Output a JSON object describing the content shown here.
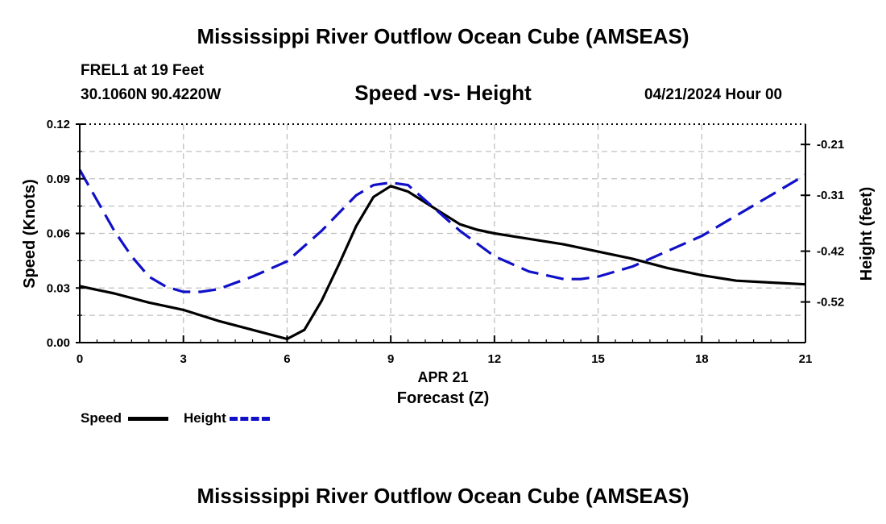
{
  "header": {
    "main_title": "Mississippi River Outflow Ocean Cube (AMSEAS)",
    "station_line": "FREL1 at 19 Feet",
    "coords_line": "30.1060N  90.4220W",
    "chart_title": "Speed -vs- Height",
    "datetime": "04/21/2024 Hour 00"
  },
  "footer": {
    "main_title": "Mississippi River Outflow Ocean Cube (AMSEAS)"
  },
  "colors": {
    "speed": "#000000",
    "height": "#1010c8",
    "grid": "#c0c0c0"
  },
  "chart_data": {
    "type": "line",
    "title": "Speed -vs- Height",
    "xlabel": "Forecast (Z)",
    "xdate_label": "APR 21",
    "ylabel_left": "Speed (Knots)",
    "ylabel_right": "Height (feet)",
    "xlim": [
      0,
      21
    ],
    "ylim_left": [
      0,
      0.12
    ],
    "ylim_right": [
      -0.6,
      -0.17
    ],
    "x_ticks": [
      0,
      3,
      6,
      9,
      12,
      15,
      18,
      21
    ],
    "x_tick_labels": [
      "0",
      "3",
      "6",
      "9",
      "12",
      "15",
      "18",
      "21"
    ],
    "y_left_ticks": [
      0,
      0.03,
      0.06,
      0.09,
      0.12
    ],
    "y_left_tick_labels": [
      "0.00",
      "0.03",
      "0.06",
      "0.09",
      "0.12"
    ],
    "y_right_ticks": [
      -0.21,
      -0.31,
      -0.42,
      -0.52
    ],
    "y_right_tick_labels": [
      "-0.21",
      "-0.31",
      "-0.42",
      "-0.52"
    ],
    "grid": true,
    "legend": {
      "position": "bottom-left",
      "items": [
        "Speed",
        "Height"
      ]
    },
    "series": [
      {
        "name": "Speed",
        "axis": "left",
        "style": "solid",
        "x": [
          0,
          1,
          2,
          3,
          4,
          5,
          6,
          6.5,
          7,
          7.5,
          8,
          8.5,
          9,
          9.5,
          10,
          10.5,
          11,
          11.5,
          12,
          13,
          14,
          15,
          16,
          17,
          18,
          19,
          20,
          21
        ],
        "values": [
          0.031,
          0.027,
          0.022,
          0.018,
          0.012,
          0.007,
          0.002,
          0.007,
          0.023,
          0.043,
          0.064,
          0.08,
          0.086,
          0.083,
          0.077,
          0.071,
          0.065,
          0.062,
          0.06,
          0.057,
          0.054,
          0.05,
          0.046,
          0.041,
          0.037,
          0.034,
          0.033,
          0.032
        ]
      },
      {
        "name": "Height",
        "axis": "right",
        "style": "dashed",
        "x": [
          0,
          0.5,
          1,
          1.5,
          2,
          2.5,
          3,
          3.5,
          4,
          5,
          6,
          7,
          8,
          8.5,
          9,
          9.5,
          10,
          11,
          12,
          13,
          14,
          14.5,
          15,
          16,
          17,
          18,
          19,
          20,
          21
        ],
        "values": [
          -0.26,
          -0.32,
          -0.38,
          -0.43,
          -0.47,
          -0.49,
          -0.5,
          -0.5,
          -0.495,
          -0.47,
          -0.44,
          -0.38,
          -0.31,
          -0.29,
          -0.285,
          -0.29,
          -0.32,
          -0.38,
          -0.43,
          -0.46,
          -0.475,
          -0.475,
          -0.47,
          -0.45,
          -0.42,
          -0.39,
          -0.35,
          -0.31,
          -0.27
        ]
      }
    ]
  }
}
